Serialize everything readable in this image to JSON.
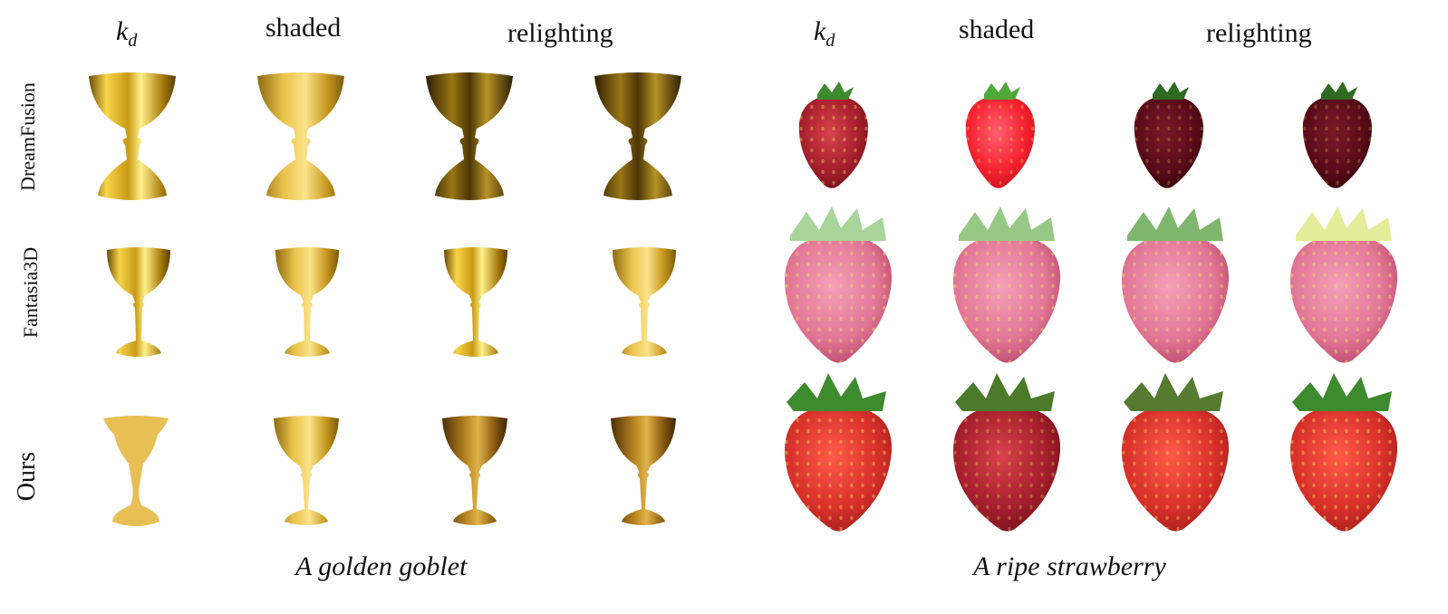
{
  "headers": {
    "left": {
      "kd_symbol": "k",
      "kd_subscript": "d",
      "shaded": "shaded",
      "relighting": "relighting"
    },
    "right": {
      "kd_symbol": "k",
      "kd_subscript": "d",
      "shaded": "shaded",
      "relighting": "relighting"
    }
  },
  "rows": [
    "DreamFusion",
    "Fantasia3D",
    "Ours"
  ],
  "captions": {
    "left": "A golden goblet",
    "right": "A ripe strawberry"
  },
  "colors": {
    "gold_light": "#f7d54a",
    "gold_mid": "#c99a14",
    "gold_dark": "#5a3e05",
    "ours_kd_flat": "#e8bf55",
    "straw_red": "#d8302a",
    "straw_pink": "#e27797",
    "straw_dark": "#5a0b18",
    "leaf_green": "#3e8a2e",
    "leaf_light": "#a9d49a"
  },
  "images": {
    "goblets": [
      [
        "goblet-dreamfusion-kd",
        "goblet-dreamfusion-shaded",
        "goblet-dreamfusion-relight-1",
        "goblet-dreamfusion-relight-2"
      ],
      [
        "goblet-fantasia3d-kd",
        "goblet-fantasia3d-shaded",
        "goblet-fantasia3d-relight-1",
        "goblet-fantasia3d-relight-2"
      ],
      [
        "goblet-ours-kd",
        "goblet-ours-shaded",
        "goblet-ours-relight-1",
        "goblet-ours-relight-2"
      ]
    ],
    "strawberries": [
      [
        "strawberry-dreamfusion-kd",
        "strawberry-dreamfusion-shaded",
        "strawberry-dreamfusion-relight-1",
        "strawberry-dreamfusion-relight-2"
      ],
      [
        "strawberry-fantasia3d-kd",
        "strawberry-fantasia3d-shaded",
        "strawberry-fantasia3d-relight-1",
        "strawberry-fantasia3d-relight-2"
      ],
      [
        "strawberry-ours-kd",
        "strawberry-ours-shaded",
        "strawberry-ours-relight-1",
        "strawberry-ours-relight-2"
      ]
    ]
  }
}
